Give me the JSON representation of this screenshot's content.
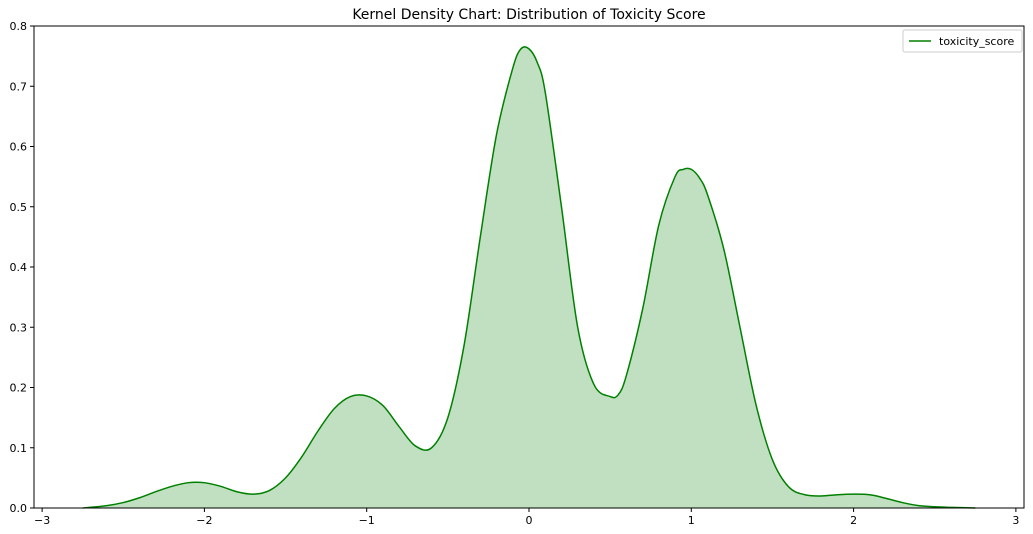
{
  "chart_data": {
    "type": "area",
    "title": "Kernel Density Chart: Distribution of Toxicity Score",
    "xlabel": "",
    "ylabel": "",
    "xlim": [
      -3.05,
      3.05
    ],
    "ylim": [
      0,
      0.8
    ],
    "x_ticks": [
      -3,
      -2,
      -1,
      0,
      1,
      2,
      3
    ],
    "x_tick_labels": [
      "−3",
      "−2",
      "−1",
      "0",
      "1",
      "2",
      "3"
    ],
    "y_ticks": [
      0.0,
      0.1,
      0.2,
      0.3,
      0.4,
      0.5,
      0.6,
      0.7,
      0.8
    ],
    "y_tick_labels": [
      "0.0",
      "0.1",
      "0.2",
      "0.3",
      "0.4",
      "0.5",
      "0.6",
      "0.7",
      "0.8"
    ],
    "grid": false,
    "legend_position": "top-right",
    "series": [
      {
        "name": "toxicity_score",
        "line_color": "#008000",
        "fill_color": "#c1e0c1",
        "x": [
          -2.75,
          -2.6,
          -2.5,
          -2.4,
          -2.3,
          -2.2,
          -2.1,
          -2.0,
          -1.9,
          -1.8,
          -1.7,
          -1.6,
          -1.5,
          -1.4,
          -1.3,
          -1.2,
          -1.1,
          -1.0,
          -0.9,
          -0.8,
          -0.7,
          -0.6,
          -0.5,
          -0.4,
          -0.3,
          -0.2,
          -0.1,
          -0.05,
          0.0,
          0.05,
          0.1,
          0.2,
          0.3,
          0.4,
          0.5,
          0.55,
          0.6,
          0.7,
          0.8,
          0.9,
          0.95,
          1.0,
          1.05,
          1.1,
          1.2,
          1.3,
          1.4,
          1.5,
          1.6,
          1.7,
          1.8,
          1.9,
          2.0,
          2.1,
          2.2,
          2.3,
          2.4,
          2.5,
          2.6,
          2.75
        ],
        "y": [
          0.0,
          0.004,
          0.009,
          0.017,
          0.027,
          0.036,
          0.042,
          0.042,
          0.036,
          0.027,
          0.023,
          0.029,
          0.05,
          0.085,
          0.128,
          0.165,
          0.185,
          0.186,
          0.17,
          0.135,
          0.103,
          0.1,
          0.15,
          0.27,
          0.45,
          0.62,
          0.73,
          0.762,
          0.762,
          0.74,
          0.69,
          0.5,
          0.3,
          0.205,
          0.185,
          0.188,
          0.22,
          0.33,
          0.47,
          0.55,
          0.562,
          0.562,
          0.548,
          0.52,
          0.43,
          0.3,
          0.17,
          0.08,
          0.035,
          0.022,
          0.02,
          0.022,
          0.023,
          0.022,
          0.016,
          0.009,
          0.004,
          0.002,
          0.001,
          0.0
        ]
      }
    ]
  }
}
